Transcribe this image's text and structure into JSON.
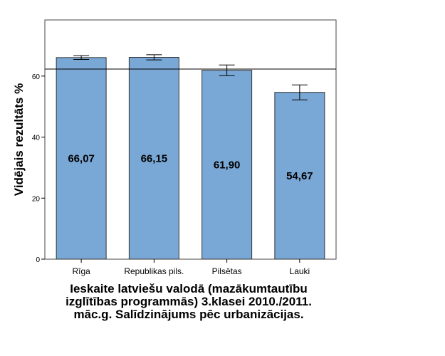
{
  "chart_data": {
    "type": "bar",
    "categories": [
      "Rīga",
      "Republikas pils.",
      "Pilsētas",
      "Lauki"
    ],
    "values": [
      66.07,
      66.15,
      61.9,
      54.67
    ],
    "data_labels": [
      "66,07",
      "66,15",
      "61,90",
      "54,67"
    ],
    "error_bars": [
      0.63,
      0.85,
      1.75,
      2.45
    ],
    "reference_line": 62.3,
    "ylabel": "Vidējais rezultāts %",
    "xlabel_lines": [
      "Ieskaite latviešu valodā (mazākumtautību",
      "izglītības programmās) 3.klasei 2010./2011.",
      "māc.g. Salīdzinājums pēc urbanizācijas."
    ],
    "yticks": [
      0,
      20,
      40,
      60
    ],
    "ylim": [
      0,
      78.4
    ],
    "grid": false,
    "bar_color": "#7aa8d6"
  }
}
